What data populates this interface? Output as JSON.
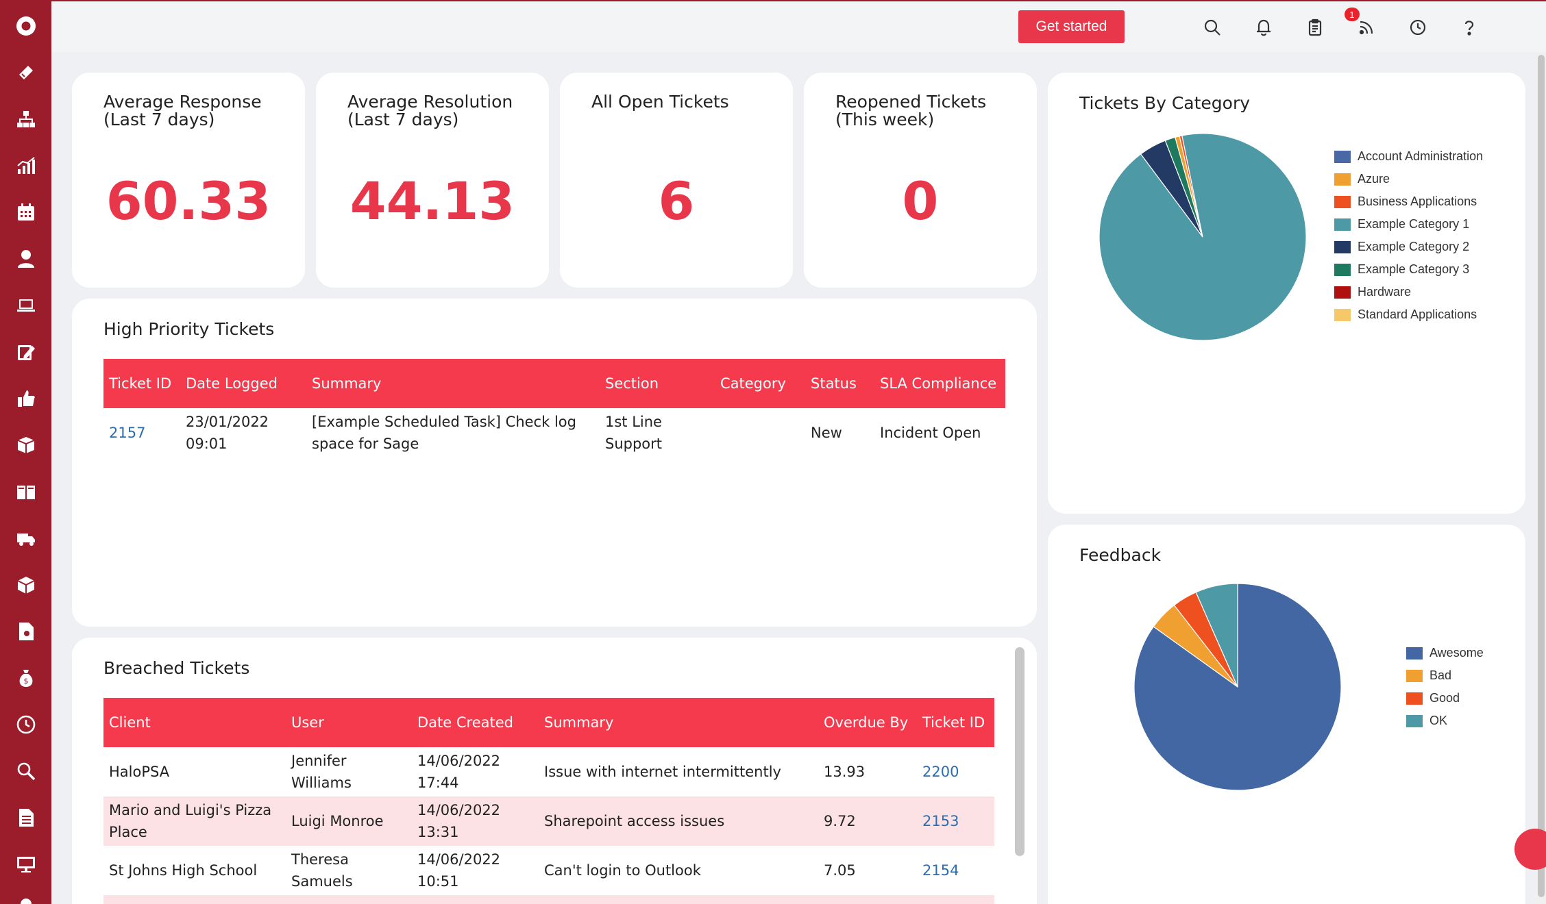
{
  "header": {
    "get_started_label": "Get started",
    "notification_count": "1"
  },
  "stats": [
    {
      "title": "Average Response\n(Last 7 days)",
      "value": "60.33"
    },
    {
      "title": "Average Resolution\n(Last 7 days)",
      "value": "44.13"
    },
    {
      "title": "All Open Tickets",
      "value": "6"
    },
    {
      "title": "Reopened Tickets\n(This week)",
      "value": "0"
    }
  ],
  "high_priority": {
    "title": "High Priority Tickets",
    "columns": [
      "Ticket ID",
      "Date Logged",
      "Summary",
      "Section",
      "Category",
      "Status",
      "SLA Compliance"
    ],
    "rows": [
      {
        "ticket_id": "2157",
        "date_logged": "23/01/2022 09:01",
        "summary": "[Example Scheduled Task] Check log space for Sage",
        "section": "1st Line Support",
        "category": "",
        "status": "New",
        "sla": "Incident Open"
      }
    ]
  },
  "breached": {
    "title": "Breached Tickets",
    "columns": [
      "Client",
      "User",
      "Date Created",
      "Summary",
      "Overdue By",
      "Ticket ID"
    ],
    "rows": [
      {
        "client": "HaloPSA",
        "user": "Jennifer Williams",
        "date": "14/06/2022 17:44",
        "summary": "Issue with internet intermittently",
        "overdue": "13.93",
        "ticket_id": "2200"
      },
      {
        "client": "Mario and Luigi's Pizza Place",
        "user": "Luigi Monroe",
        "date": "14/06/2022 13:31",
        "summary": "Sharepoint access issues",
        "overdue": "9.72",
        "ticket_id": "2153"
      },
      {
        "client": "St Johns High School",
        "user": "Theresa Samuels",
        "date": "14/06/2022 10:51",
        "summary": "Can't login to Outlook",
        "overdue": "7.05",
        "ticket_id": "2154"
      }
    ]
  },
  "chart_data": [
    {
      "type": "pie",
      "title": "Tickets By Category",
      "legend_position": "right",
      "categories": [
        "Account Administration",
        "Azure",
        "Business Applications",
        "Example Category 1",
        "Example Category 2",
        "Example Category 3",
        "Hardware",
        "Standard Applications"
      ],
      "values": [
        0,
        0.7,
        0.4,
        93.0,
        4.3,
        1.6,
        0,
        0
      ],
      "colors": [
        "#4a67a6",
        "#f0a030",
        "#ee5020",
        "#4e99a6",
        "#233a65",
        "#1e7a5e",
        "#b01010",
        "#f5c86a"
      ]
    },
    {
      "type": "pie",
      "title": "Feedback",
      "legend_position": "right",
      "categories": [
        "Awesome",
        "Bad",
        "Good",
        "OK"
      ],
      "values": [
        84.9,
        4.6,
        3.9,
        6.6
      ],
      "colors": [
        "#4367a2",
        "#f0a030",
        "#ee5020",
        "#4e99a6"
      ]
    }
  ]
}
